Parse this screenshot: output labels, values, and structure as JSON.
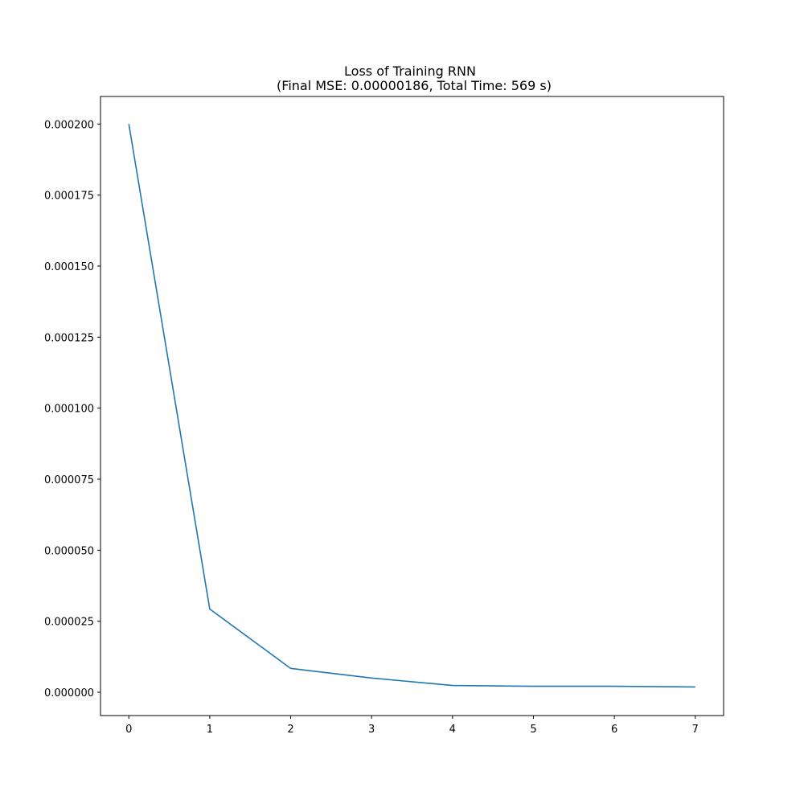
{
  "chart_data": {
    "type": "line",
    "title": "Loss of Training RNN",
    "subtitle": "(Final MSE: 0.00000186, Total Time: 569 s)",
    "xlabel": "",
    "ylabel": "",
    "xlim": [
      -0.35,
      7.35
    ],
    "ylim": [
      -8.2e-06,
      0.0002097
    ],
    "grid": false,
    "x_ticks": [
      0,
      1,
      2,
      3,
      4,
      5,
      6,
      7
    ],
    "x_tick_labels": [
      "0",
      "1",
      "2",
      "3",
      "4",
      "5",
      "6",
      "7"
    ],
    "y_ticks": [
      0.0,
      2.5e-05,
      5e-05,
      7.5e-05,
      0.0001,
      0.000125,
      0.00015,
      0.000175,
      0.0002
    ],
    "y_tick_labels": [
      "0.000000",
      "0.000025",
      "0.000050",
      "0.000075",
      "0.000100",
      "0.000125",
      "0.000150",
      "0.000175",
      "0.000200"
    ],
    "series": [
      {
        "color": "#1f77b4",
        "x": [
          0,
          1,
          2,
          3,
          4,
          5,
          6,
          7
        ],
        "values": [
          0.0002,
          2.93e-05,
          8.4e-06,
          5e-06,
          2.4e-06,
          2.1e-06,
          2.1e-06,
          1.86e-06
        ]
      }
    ]
  }
}
